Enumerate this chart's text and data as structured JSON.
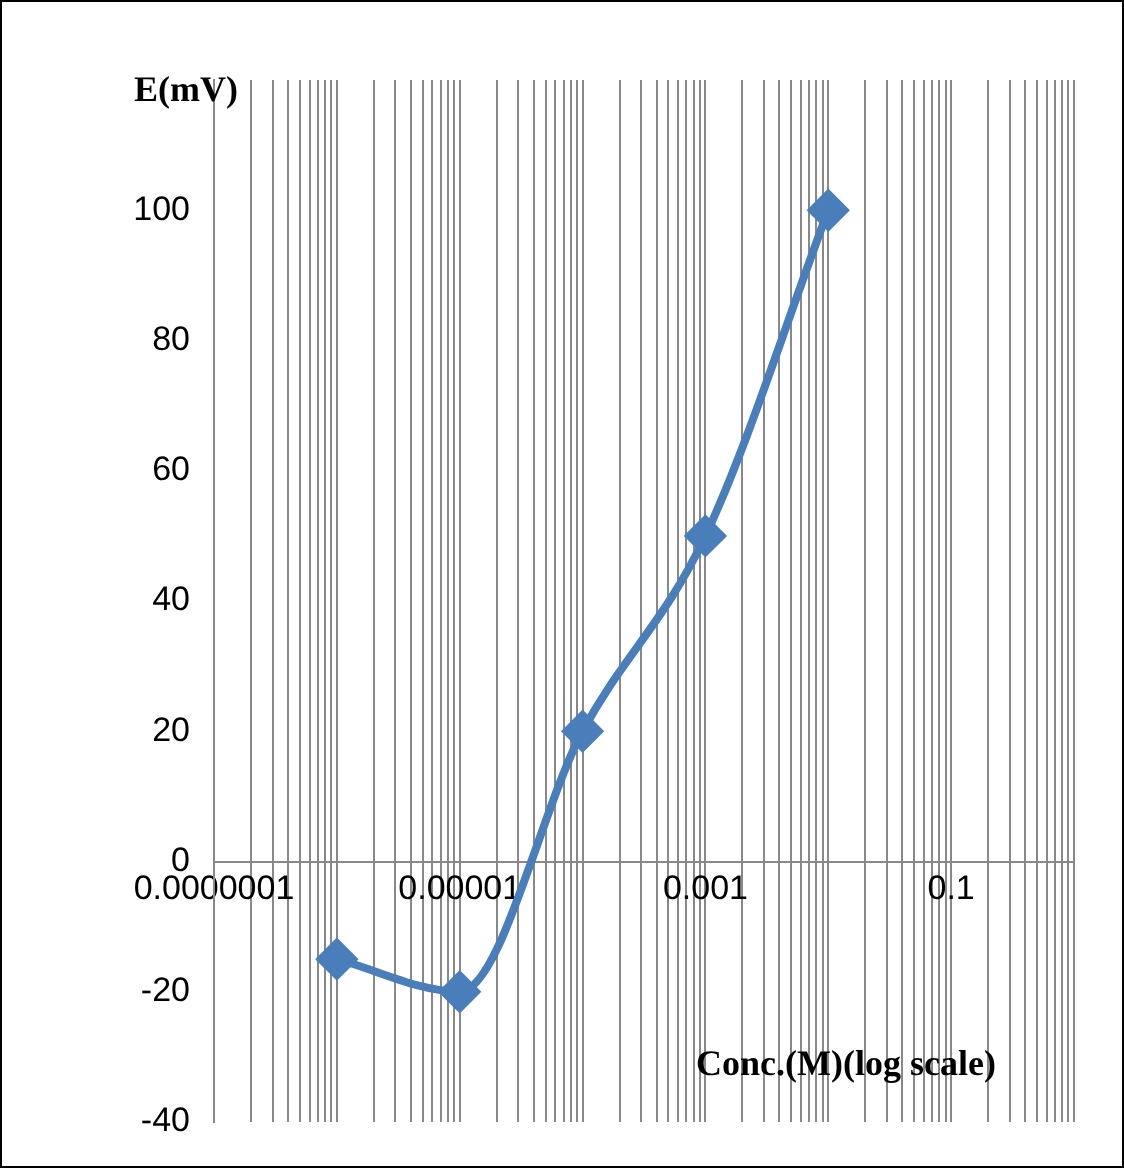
{
  "chart_data": {
    "type": "line",
    "xlabel": "Conc.(M)(log scale)",
    "ylabel": "E(mV)",
    "x": [
      1e-06,
      1e-05,
      0.0001,
      0.001,
      0.01
    ],
    "series": [
      {
        "color": "#4a7ebb",
        "values": [
          -15,
          -20,
          20,
          50,
          100
        ]
      }
    ],
    "log": "x",
    "grid": "x",
    "marker": "diamond",
    "line_style": "solid",
    "xlim": [
      1e-07,
      1
    ],
    "ylim": [
      -40,
      120
    ],
    "yticks": [
      -40,
      -20,
      0,
      20,
      40,
      60,
      80,
      100
    ],
    "xticks": [
      {
        "value": 1e-07,
        "label": "0.0000001"
      },
      {
        "value": 2e-07,
        "label": null
      },
      {
        "value": 3e-07,
        "label": null
      },
      {
        "value": 4e-07,
        "label": null
      },
      {
        "value": 5e-07,
        "label": null
      },
      {
        "value": 6e-07,
        "label": null
      },
      {
        "value": 7e-07,
        "label": null
      },
      {
        "value": 8e-07,
        "label": null
      },
      {
        "value": 9e-07,
        "label": null
      },
      {
        "value": 1e-06,
        "label": null
      },
      {
        "value": 2e-06,
        "label": null
      },
      {
        "value": 3e-06,
        "label": null
      },
      {
        "value": 4e-06,
        "label": null
      },
      {
        "value": 5e-06,
        "label": null
      },
      {
        "value": 6e-06,
        "label": null
      },
      {
        "value": 7e-06,
        "label": null
      },
      {
        "value": 8e-06,
        "label": null
      },
      {
        "value": 9e-06,
        "label": null
      },
      {
        "value": 1e-05,
        "label": "0.00001"
      },
      {
        "value": 2e-05,
        "label": null
      },
      {
        "value": 3e-05,
        "label": null
      },
      {
        "value": 4e-05,
        "label": null
      },
      {
        "value": 5e-05,
        "label": null
      },
      {
        "value": 6e-05,
        "label": null
      },
      {
        "value": 7e-05,
        "label": null
      },
      {
        "value": 8e-05,
        "label": null
      },
      {
        "value": 9e-05,
        "label": null
      },
      {
        "value": 0.0001,
        "label": null
      },
      {
        "value": 0.0002,
        "label": null
      },
      {
        "value": 0.0003,
        "label": null
      },
      {
        "value": 0.0004,
        "label": null
      },
      {
        "value": 0.0005,
        "label": null
      },
      {
        "value": 0.0006,
        "label": null
      },
      {
        "value": 0.0007,
        "label": null
      },
      {
        "value": 0.0008,
        "label": null
      },
      {
        "value": 0.0009,
        "label": null
      },
      {
        "value": 0.001,
        "label": "0.001"
      },
      {
        "value": 0.002,
        "label": null
      },
      {
        "value": 0.003,
        "label": null
      },
      {
        "value": 0.004,
        "label": null
      },
      {
        "value": 0.005,
        "label": null
      },
      {
        "value": 0.006,
        "label": null
      },
      {
        "value": 0.007,
        "label": null
      },
      {
        "value": 0.008,
        "label": null
      },
      {
        "value": 0.009,
        "label": null
      },
      {
        "value": 0.01,
        "label": null
      },
      {
        "value": 0.02,
        "label": null
      },
      {
        "value": 0.03,
        "label": null
      },
      {
        "value": 0.04,
        "label": null
      },
      {
        "value": 0.05,
        "label": null
      },
      {
        "value": 0.06,
        "label": null
      },
      {
        "value": 0.07,
        "label": null
      },
      {
        "value": 0.08,
        "label": null
      },
      {
        "value": 0.09,
        "label": null
      },
      {
        "value": 0.1,
        "label": "0.1"
      },
      {
        "value": 0.2,
        "label": null
      },
      {
        "value": 0.3,
        "label": null
      },
      {
        "value": 0.4,
        "label": null
      },
      {
        "value": 0.5,
        "label": null
      },
      {
        "value": 0.6,
        "label": null
      },
      {
        "value": 0.7,
        "label": null
      },
      {
        "value": 0.8,
        "label": null
      },
      {
        "value": 0.9,
        "label": null
      },
      {
        "value": 1,
        "label": null
      }
    ]
  }
}
